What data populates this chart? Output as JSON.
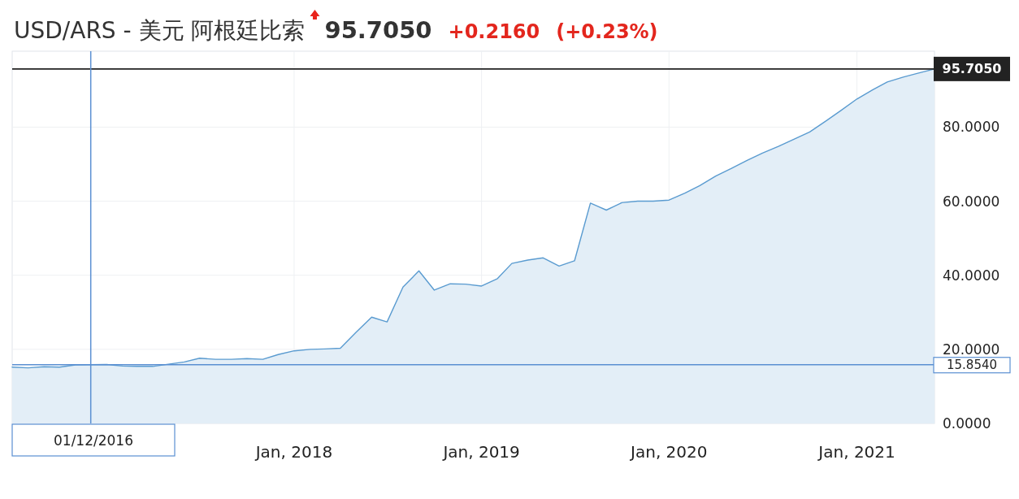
{
  "chart_data": {
    "type": "area",
    "title": "USD/ARS - 美元 阿根廷比索",
    "annotations": [
      "95.7050",
      "+0.2160",
      "(+0.23%)"
    ],
    "x": [
      "2016-07-01",
      "2016-08-01",
      "2016-09-01",
      "2016-10-01",
      "2016-11-01",
      "2016-12-01",
      "2017-01-01",
      "2017-02-01",
      "2017-03-01",
      "2017-04-01",
      "2017-05-01",
      "2017-06-01",
      "2017-07-01",
      "2017-08-01",
      "2017-09-01",
      "2017-10-01",
      "2017-11-01",
      "2017-12-01",
      "2018-01-01",
      "2018-02-01",
      "2018-03-01",
      "2018-04-01",
      "2018-05-01",
      "2018-06-01",
      "2018-07-01",
      "2018-08-01",
      "2018-09-01",
      "2018-10-01",
      "2018-11-01",
      "2018-12-01",
      "2019-01-01",
      "2019-02-01",
      "2019-03-01",
      "2019-04-01",
      "2019-05-01",
      "2019-06-01",
      "2019-07-01",
      "2019-08-01",
      "2019-09-01",
      "2019-10-01",
      "2019-11-01",
      "2019-12-01",
      "2020-01-01",
      "2020-02-01",
      "2020-03-01",
      "2020-04-01",
      "2020-05-01",
      "2020-06-01",
      "2020-07-01",
      "2020-08-01",
      "2020-09-01",
      "2020-10-01",
      "2020-11-01",
      "2020-12-01",
      "2021-01-01",
      "2021-02-01",
      "2021-03-01",
      "2021-04-01",
      "2021-05-01",
      "2021-06-01"
    ],
    "series": [
      {
        "color": "#5a9bd0",
        "values": [
          15.2,
          15.0,
          15.3,
          15.2,
          15.8,
          15.854,
          15.9,
          15.5,
          15.4,
          15.4,
          16.0,
          16.6,
          17.6,
          17.3,
          17.3,
          17.5,
          17.3,
          18.6,
          19.6,
          20.0,
          20.1,
          20.3,
          24.5,
          28.7,
          27.4,
          36.8,
          41.2,
          36.0,
          37.7,
          37.6,
          37.1,
          39.1,
          43.2,
          44.1,
          44.7,
          42.5,
          43.9,
          59.5,
          57.6,
          59.6,
          60.0,
          60.0,
          60.3,
          62.2,
          64.2,
          66.8,
          68.8,
          71.0,
          73.0,
          74.8,
          76.8,
          78.7,
          81.6,
          84.5,
          87.6,
          90.1,
          92.2,
          93.5,
          94.6,
          95.705
        ]
      }
    ],
    "xlim": [
      "2016-07-01",
      "2021-06-01"
    ],
    "xticks": [
      {
        "value": "2018-01-01",
        "label": "Jan, 2018"
      },
      {
        "value": "2019-01-01",
        "label": "Jan, 2019"
      },
      {
        "value": "2020-01-01",
        "label": "Jan, 2020"
      },
      {
        "value": "2021-01-01",
        "label": "Jan, 2021"
      }
    ],
    "ylim": [
      0,
      100.5
    ],
    "yticks": [
      {
        "value": 0,
        "label": "0.0000"
      },
      {
        "value": 20,
        "label": "20.0000"
      },
      {
        "value": 40,
        "label": "40.0000"
      },
      {
        "value": 60,
        "label": "60.0000"
      },
      {
        "value": 80,
        "label": "80.0000"
      }
    ],
    "grid": true,
    "ref_lines": [
      {
        "axis": "y",
        "value": 95.705,
        "label": "95.7050",
        "color": "#222222"
      },
      {
        "axis": "y",
        "value": 15.854,
        "label": "15.8540",
        "color": "#5a8fd2"
      },
      {
        "axis": "x",
        "value": "2016-12-01",
        "label": "01/12/2016",
        "color": "#5a8fd2"
      }
    ]
  }
}
